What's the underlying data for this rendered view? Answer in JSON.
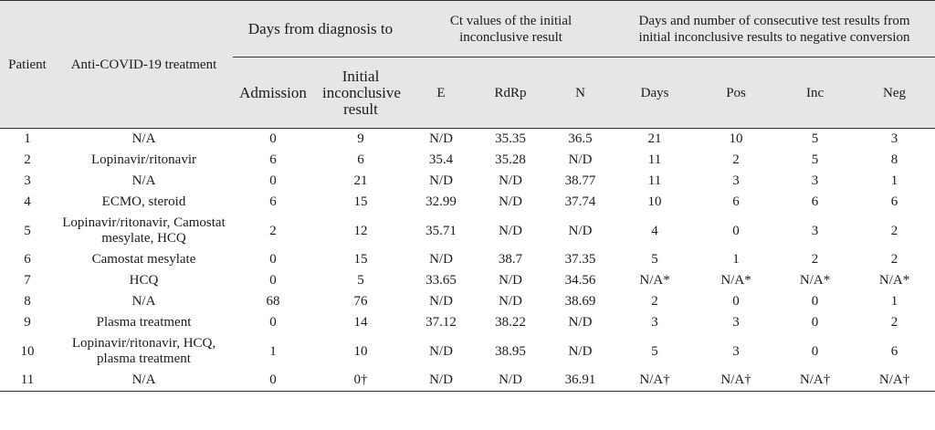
{
  "headers": {
    "patient": "Patient",
    "treatment": "Anti-COVID-19 treatment",
    "days_from_diag": "Days from diagnosis to",
    "admission": "Admission",
    "initial_inconclusive": "Initial inconclusive result",
    "ct_values": "Ct values of the initial inconclusive result",
    "e": "E",
    "rdrp": "RdRp",
    "n": "N",
    "days_number": "Days and number of consecutive test results from initial inconclusive results to negative conversion",
    "days": "Days",
    "pos": "Pos",
    "inc": "Inc",
    "neg": "Neg"
  },
  "rows": [
    {
      "patient": "1",
      "treatment": "N/A",
      "admission": "0",
      "initial": "9",
      "e": "N/D",
      "rdrp": "35.35",
      "n": "36.5",
      "days": "21",
      "pos": "10",
      "inc": "5",
      "neg": "3"
    },
    {
      "patient": "2",
      "treatment": "Lopinavir/ritonavir",
      "admission": "6",
      "initial": "6",
      "e": "35.4",
      "rdrp": "35.28",
      "n": "N/D",
      "days": "11",
      "pos": "2",
      "inc": "5",
      "neg": "8"
    },
    {
      "patient": "3",
      "treatment": "N/A",
      "admission": "0",
      "initial": "21",
      "e": "N/D",
      "rdrp": "N/D",
      "n": "38.77",
      "days": "11",
      "pos": "3",
      "inc": "3",
      "neg": "1"
    },
    {
      "patient": "4",
      "treatment": "ECMO, steroid",
      "admission": "6",
      "initial": "15",
      "e": "32.99",
      "rdrp": "N/D",
      "n": "37.74",
      "days": "10",
      "pos": "6",
      "inc": "6",
      "neg": "6"
    },
    {
      "patient": "5",
      "treatment": "Lopinavir/ritonavir, Camostat mesylate, HCQ",
      "admission": "2",
      "initial": "12",
      "e": "35.71",
      "rdrp": "N/D",
      "n": "N/D",
      "days": "4",
      "pos": "0",
      "inc": "3",
      "neg": "2"
    },
    {
      "patient": "6",
      "treatment": "Camostat mesylate",
      "admission": "0",
      "initial": "15",
      "e": "N/D",
      "rdrp": "38.7",
      "n": "37.35",
      "days": "5",
      "pos": "1",
      "inc": "2",
      "neg": "2"
    },
    {
      "patient": "7",
      "treatment": "HCQ",
      "admission": "0",
      "initial": "5",
      "e": "33.65",
      "rdrp": "N/D",
      "n": "34.56",
      "days": "N/A*",
      "pos": "N/A*",
      "inc": "N/A*",
      "neg": "N/A*"
    },
    {
      "patient": "8",
      "treatment": "N/A",
      "admission": "68",
      "initial": "76",
      "e": "N/D",
      "rdrp": "N/D",
      "n": "38.69",
      "days": "2",
      "pos": "0",
      "inc": "0",
      "neg": "1"
    },
    {
      "patient": "9",
      "treatment": "Plasma treatment",
      "admission": "0",
      "initial": "14",
      "e": "37.12",
      "rdrp": "38.22",
      "n": "N/D",
      "days": "3",
      "pos": "3",
      "inc": "0",
      "neg": "2"
    },
    {
      "patient": "10",
      "treatment": "Lopinavir/ritonavir, HCQ, plasma treatment",
      "admission": "1",
      "initial": "10",
      "e": "N/D",
      "rdrp": "38.95",
      "n": "N/D",
      "days": "5",
      "pos": "3",
      "inc": "0",
      "neg": "6"
    },
    {
      "patient": "11",
      "treatment": "N/A",
      "admission": "0",
      "initial": "0†",
      "e": "N/D",
      "rdrp": "N/D",
      "n": "36.91",
      "days": "N/A†",
      "pos": "N/A†",
      "inc": "N/A†",
      "neg": "N/A†"
    }
  ]
}
